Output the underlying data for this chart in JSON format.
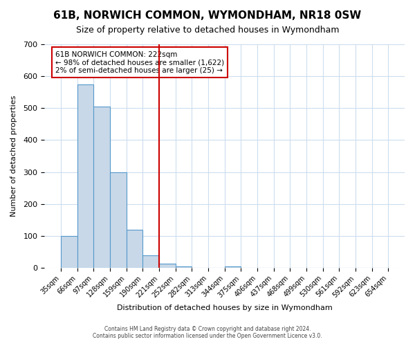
{
  "title": "61B, NORWICH COMMON, WYMONDHAM, NR18 0SW",
  "subtitle": "Size of property relative to detached houses in Wymondham",
  "xlabel": "Distribution of detached houses by size in Wymondham",
  "ylabel": "Number of detached properties",
  "bin_labels": [
    "35sqm",
    "66sqm",
    "97sqm",
    "128sqm",
    "159sqm",
    "190sqm",
    "221sqm",
    "252sqm",
    "282sqm",
    "313sqm",
    "344sqm",
    "375sqm",
    "406sqm",
    "437sqm",
    "468sqm",
    "499sqm",
    "530sqm",
    "561sqm",
    "592sqm",
    "623sqm",
    "654sqm"
  ],
  "bar_values": [
    100,
    575,
    505,
    300,
    120,
    38,
    13,
    5,
    0,
    0,
    4,
    0,
    0,
    0,
    0,
    0,
    0,
    0,
    0,
    0
  ],
  "bar_color": "#c8d8e8",
  "bar_edgecolor": "#5599cc",
  "vline_x": 6,
  "vline_color": "#cc0000",
  "ylim": [
    0,
    700
  ],
  "yticks": [
    0,
    100,
    200,
    300,
    400,
    500,
    600,
    700
  ],
  "annotation_title": "61B NORWICH COMMON: 222sqm",
  "annotation_line1": "← 98% of detached houses are smaller (1,622)",
  "annotation_line2": "2% of semi-detached houses are larger (25) →",
  "annotation_box_color": "#ffffff",
  "annotation_box_edgecolor": "#cc0000",
  "footer_line1": "Contains HM Land Registry data © Crown copyright and database right 2024.",
  "footer_line2": "Contains public sector information licensed under the Open Government Licence v3.0.",
  "background_color": "#ffffff",
  "grid_color": "#ccddee"
}
